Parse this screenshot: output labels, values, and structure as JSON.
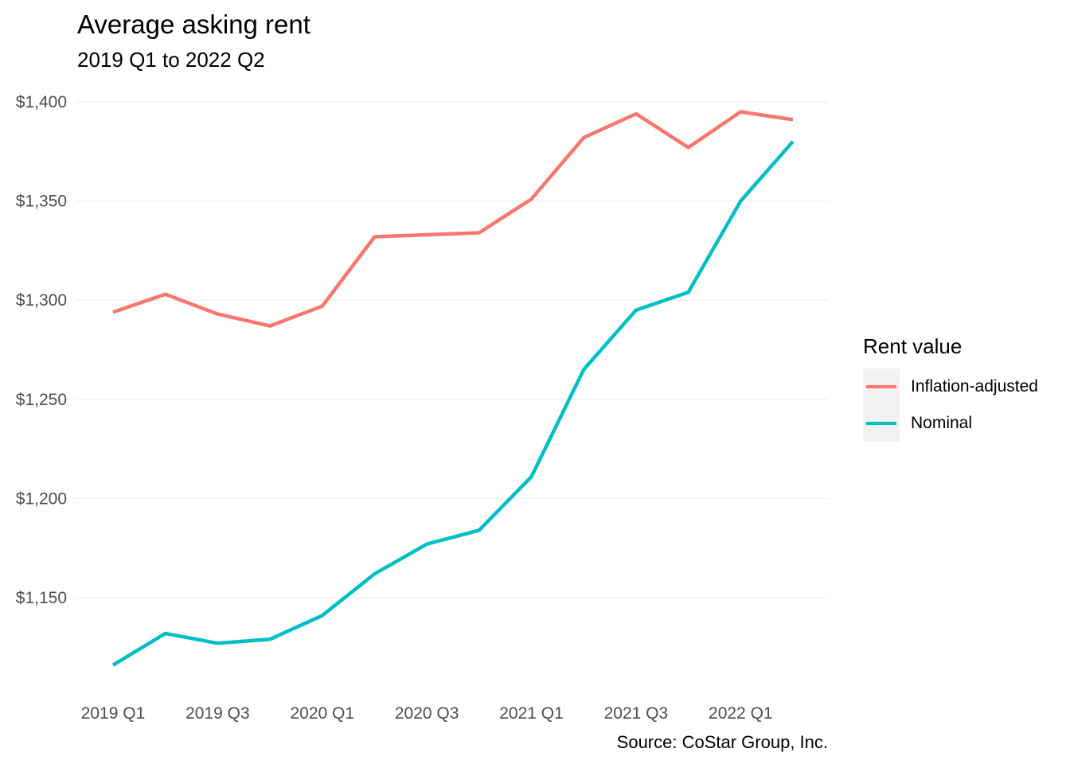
{
  "chart_data": {
    "type": "line",
    "title": "Average asking rent",
    "subtitle": "2019 Q1 to 2022 Q2",
    "caption": "Source: CoStar Group, Inc.",
    "xlabel": "",
    "ylabel": "",
    "x": [
      "2019 Q1",
      "2019 Q2",
      "2019 Q3",
      "2019 Q4",
      "2020 Q1",
      "2020 Q2",
      "2020 Q3",
      "2020 Q4",
      "2021 Q1",
      "2021 Q2",
      "2021 Q3",
      "2021 Q4",
      "2022 Q1",
      "2022 Q2"
    ],
    "x_tick_labels": [
      "2019 Q1",
      "2019 Q3",
      "2020 Q1",
      "2020 Q3",
      "2021 Q1",
      "2021 Q3",
      "2022 Q1"
    ],
    "y_ticks": [
      1150,
      1200,
      1250,
      1300,
      1350,
      1400
    ],
    "y_tick_labels": [
      "$1,150",
      "$1,200",
      "$1,250",
      "$1,300",
      "$1,350",
      "$1,400"
    ],
    "ylim": [
      1110,
      1410
    ],
    "grid": true,
    "legend_title": "Rent value",
    "legend_position": "right",
    "series": [
      {
        "name": "Inflation-adjusted",
        "color": "#F8766D",
        "values": [
          1294,
          1303,
          1293,
          1287,
          1297,
          1332,
          1333,
          1334,
          1351,
          1382,
          1394,
          1377,
          1395,
          1391
        ]
      },
      {
        "name": "Nominal",
        "color": "#00BFC4",
        "values": [
          1116,
          1132,
          1127,
          1129,
          1141,
          1162,
          1177,
          1184,
          1211,
          1265,
          1295,
          1304,
          1350,
          1380
        ]
      }
    ]
  }
}
